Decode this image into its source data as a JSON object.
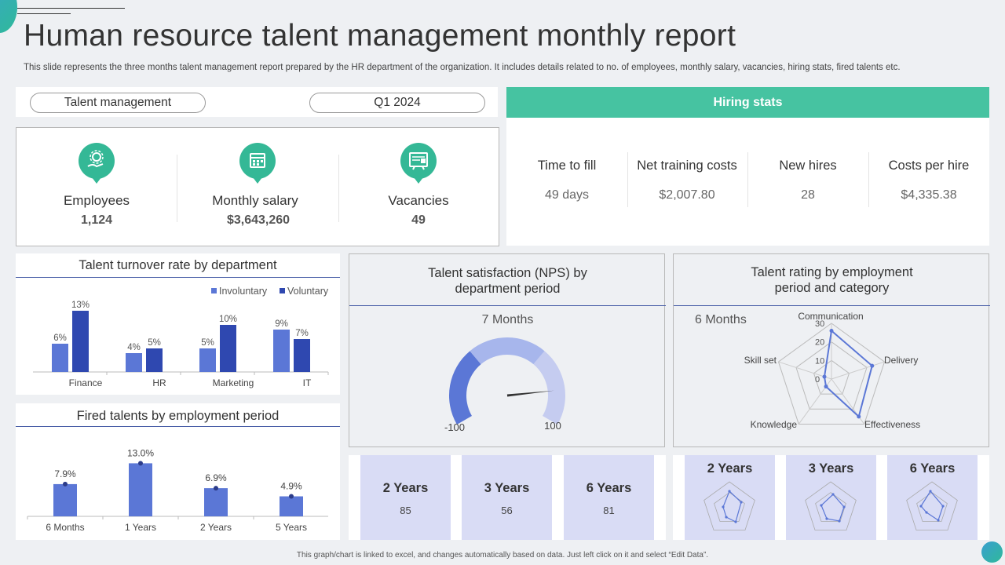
{
  "title": "Human resource talent management monthly report",
  "subtitle": "This slide represents the three months talent management report prepared by the HR department of the organization. It includes details related to no. of employees, monthly salary, vacancies, hiring stats, fired talents etc.",
  "filters": {
    "category": "Talent management",
    "period": "Q1 2024"
  },
  "kpis": [
    {
      "label": "Employees",
      "value": "1,124",
      "icon": "employees-icon"
    },
    {
      "label": "Monthly salary",
      "value": "$3,643,260",
      "icon": "salary-calendar-icon"
    },
    {
      "label": "Vacancies",
      "value": "49",
      "icon": "vacancy-board-icon"
    }
  ],
  "hiring": {
    "title": "Hiring stats",
    "stats": [
      {
        "label": "Time to fill",
        "value": "49 days"
      },
      {
        "label": "Net training costs",
        "value": "$2,007.80"
      },
      {
        "label": "New hires",
        "value": "28"
      },
      {
        "label": "Costs per hire",
        "value": "$4,335.38"
      }
    ]
  },
  "turnover": {
    "title": "Talent turnover rate by department"
  },
  "fired": {
    "title": "Fired talents by employment period"
  },
  "nps": {
    "title_line1": "Talent satisfaction (NPS) by",
    "title_line2": "department period",
    "period": "7 Months",
    "min": "-100",
    "max": "100"
  },
  "rating": {
    "title_line1": "Talent rating by employment",
    "title_line2": "period and category",
    "period": "6 Months"
  },
  "nps_cards": [
    {
      "title": "2 Years",
      "value": "85"
    },
    {
      "title": "3 Years",
      "value": "56"
    },
    {
      "title": "6 Years",
      "value": "81"
    }
  ],
  "radar_cards": [
    {
      "title": "2 Years"
    },
    {
      "title": "3 Years"
    },
    {
      "title": "6 Years"
    }
  ],
  "footer": "This graph/chart is linked to excel, and changes automatically based on data. Just left click on it and select “Edit Data”.",
  "colors": {
    "green": "#46c3a1",
    "blue_dark": "#2f48b0",
    "blue_mid": "#5b77d6",
    "blue_light": "#c5ccf0",
    "card": "#d9dcf5"
  },
  "chart_data": [
    {
      "type": "bar",
      "title": "Talent turnover rate by department",
      "categories": [
        "Finance",
        "HR",
        "Marketing",
        "IT"
      ],
      "series": [
        {
          "name": "Involuntary",
          "values": [
            6,
            4,
            5,
            9
          ],
          "labels": [
            "6%",
            "4%",
            "5%",
            "9%"
          ],
          "color": "#5b77d6"
        },
        {
          "name": "Voluntary",
          "values": [
            13,
            5,
            10,
            7
          ],
          "labels": [
            "13%",
            "5%",
            "10%",
            "7%"
          ],
          "color": "#2f48b0"
        }
      ],
      "legend": "top-right"
    },
    {
      "type": "bar",
      "title": "Fired talents by employment period",
      "categories": [
        "6 Months",
        "1 Years",
        "2 Years",
        "5 Years"
      ],
      "values": [
        7.9,
        13.0,
        6.9,
        4.9
      ],
      "labels": [
        "7.9%",
        "13.0%",
        "6.9%",
        "4.9%"
      ]
    },
    {
      "type": "gauge",
      "title": "Talent satisfaction (NPS) by department period",
      "category": "7 Months",
      "range": [
        -100,
        100
      ],
      "value": 70
    },
    {
      "type": "radar",
      "title": "Talent rating by employment period and category",
      "series_label": "6 Months",
      "axes": [
        "Communication",
        "Delivery",
        "Effectiveness",
        "Knowledge",
        "Skill set"
      ],
      "ticks": [
        "30",
        "20",
        "10",
        "0"
      ],
      "range": [
        0,
        30
      ],
      "values": [
        26,
        23,
        25,
        5,
        4
      ]
    }
  ]
}
